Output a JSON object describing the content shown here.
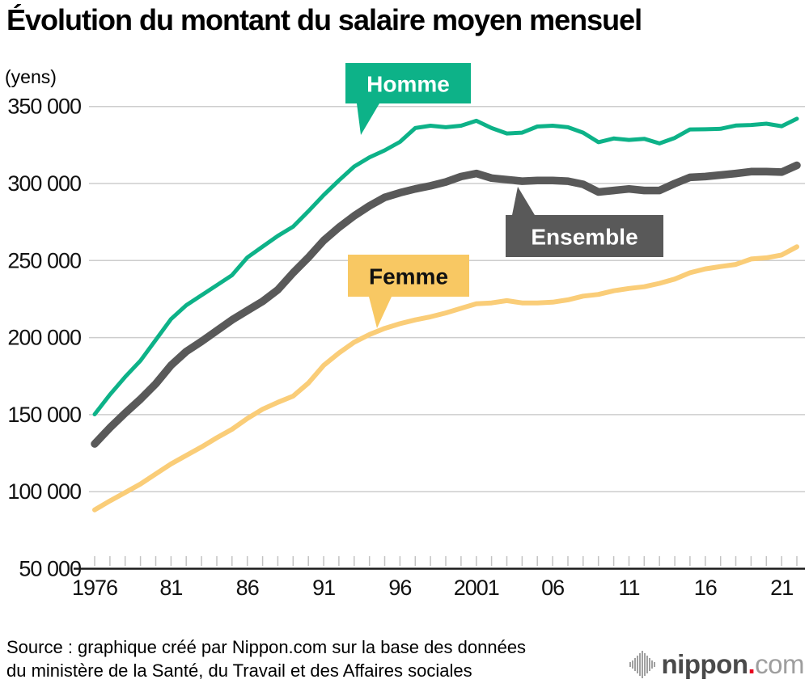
{
  "page": {
    "title": "Évolution du montant du salaire moyen mensuel",
    "unit_label": "(yens)"
  },
  "chart_data": {
    "type": "line",
    "title": "Évolution du montant du salaire moyen mensuel",
    "ylabel": "(yens)",
    "grid": true,
    "legend_position": "speech-bubble labels on lines",
    "x": [
      1976,
      1977,
      1978,
      1979,
      1980,
      1981,
      1982,
      1983,
      1984,
      1985,
      1986,
      1987,
      1988,
      1989,
      1990,
      1991,
      1992,
      1993,
      1994,
      1995,
      1996,
      1997,
      1998,
      1999,
      2000,
      2001,
      2002,
      2003,
      2004,
      2005,
      2006,
      2007,
      2008,
      2009,
      2010,
      2011,
      2012,
      2013,
      2014,
      2015,
      2016,
      2017,
      2018,
      2019,
      2020,
      2021,
      2022
    ],
    "x_tick_labels": [
      {
        "year": 1976,
        "label": "1976"
      },
      {
        "year": 1981,
        "label": "81"
      },
      {
        "year": 1986,
        "label": "86"
      },
      {
        "year": 1991,
        "label": "91"
      },
      {
        "year": 1996,
        "label": "96"
      },
      {
        "year": 2001,
        "label": "2001"
      },
      {
        "year": 2006,
        "label": "06"
      },
      {
        "year": 2011,
        "label": "11"
      },
      {
        "year": 2016,
        "label": "16"
      },
      {
        "year": 2021,
        "label": "21"
      }
    ],
    "y_axis": {
      "min": 50000,
      "max": 350000,
      "tick_step": 50000,
      "ticks": [
        {
          "value": 350000,
          "label": "350 000"
        },
        {
          "value": 300000,
          "label": "300 000"
        },
        {
          "value": 250000,
          "label": "250 000"
        },
        {
          "value": 200000,
          "label": "200 000"
        },
        {
          "value": 150000,
          "label": "150 000"
        },
        {
          "value": 100000,
          "label": "100 000"
        },
        {
          "value": 50000,
          "label": "50 000"
        }
      ]
    },
    "series": [
      {
        "id": "homme",
        "name": "Homme",
        "color": "#0db288",
        "line_color": "#0db288",
        "width": 5,
        "values": [
          150200,
          163000,
          174500,
          185000,
          198500,
          212000,
          221000,
          227500,
          234000,
          240500,
          252000,
          259000,
          266000,
          272000,
          282000,
          292500,
          302000,
          311000,
          317000,
          321500,
          327000,
          336000,
          337500,
          336500,
          337500,
          340700,
          336000,
          332500,
          333000,
          337000,
          337500,
          336500,
          333000,
          326800,
          329200,
          328300,
          329000,
          326000,
          329600,
          335100,
          335200,
          335500,
          337600,
          338000,
          338800,
          337200,
          342000
        ]
      },
      {
        "id": "ensemble",
        "name": "Ensemble",
        "color": "#595959",
        "line_color": "#595959",
        "width": 9.5,
        "values": [
          131000,
          141500,
          151000,
          160000,
          170000,
          182000,
          191000,
          197500,
          204500,
          211500,
          217500,
          223500,
          231000,
          242000,
          252000,
          263000,
          271500,
          279000,
          285500,
          291000,
          294000,
          296500,
          298500,
          301000,
          304500,
          306500,
          303500,
          302500,
          301500,
          302000,
          302000,
          301500,
          299500,
          294500,
          295500,
          296500,
          295500,
          295500,
          300000,
          304000,
          304500,
          305500,
          306500,
          307700,
          307700,
          307400,
          311800
        ]
      },
      {
        "id": "femme",
        "name": "Femme",
        "color": "#f8c863",
        "line_color": "#facd78",
        "width": 6,
        "values": [
          88200,
          94000,
          99500,
          105000,
          111500,
          118000,
          123500,
          129000,
          135000,
          140500,
          147500,
          153500,
          158000,
          162000,
          170500,
          182000,
          190000,
          197000,
          202000,
          206000,
          209000,
          211500,
          213500,
          216000,
          219000,
          222000,
          222500,
          224000,
          222500,
          222500,
          223000,
          224500,
          226900,
          228000,
          230400,
          231900,
          233000,
          235200,
          238000,
          242100,
          244600,
          246100,
          247500,
          251000,
          251800,
          253600,
          258900
        ]
      }
    ]
  },
  "footer": {
    "source_line1": "Source : graphique créé par Nippon.com sur la base des données",
    "source_line2": "du ministère de la Santé, du Travail et des Affaires sociales",
    "logo": {
      "name": "nippon",
      "dot": ".",
      "tld": "com"
    }
  }
}
